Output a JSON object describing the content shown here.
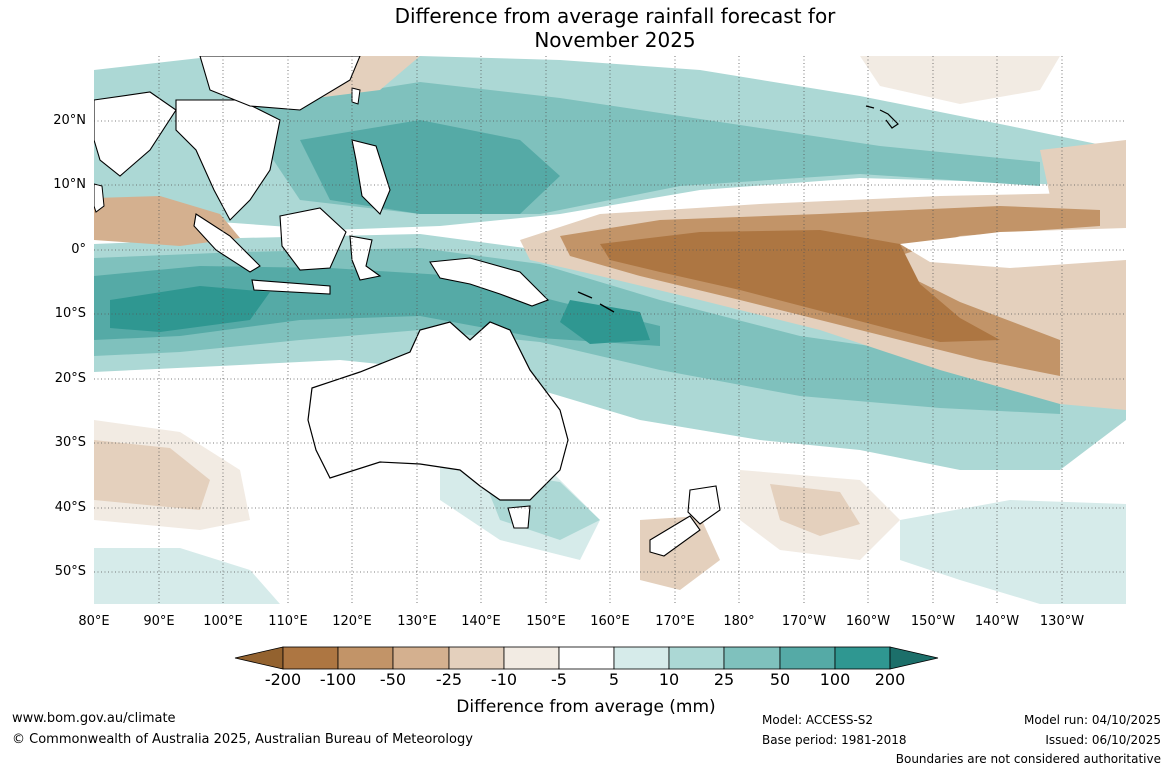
{
  "title": {
    "line1": "Difference from average rainfall forecast for",
    "line2": "November 2025"
  },
  "map": {
    "lat_labels": [
      "20°N",
      "10°N",
      "0°",
      "10°S",
      "20°S",
      "30°S",
      "40°S",
      "50°S"
    ],
    "lon_labels": [
      "80°E",
      "90°E",
      "100°E",
      "110°E",
      "120°E",
      "130°E",
      "140°E",
      "150°E",
      "160°E",
      "170°E",
      "180°",
      "170°W",
      "160°W",
      "150°W",
      "140°W",
      "130°W"
    ]
  },
  "legend": {
    "title": "Difference from average (mm)",
    "ticks": [
      "-200",
      "-100",
      "-50",
      "-25",
      "-10",
      "-5",
      "5",
      "10",
      "25",
      "50",
      "100",
      "200"
    ],
    "colors": {
      "dry_extend": "#93622f",
      "dry_200": "#ad7642",
      "dry_100": "#c29468",
      "dry_50": "#d4b08f",
      "dry_25": "#e4d0bd",
      "dry_10": "#f2ebe3",
      "neutral": "#ffffff",
      "wet_10": "#d6ebea",
      "wet_25": "#acd8d5",
      "wet_50": "#7fc1bd",
      "wet_100": "#55aaa6",
      "wet_200": "#2f9791",
      "wet_extend": "#1c6f6a"
    }
  },
  "footer": {
    "url": "www.bom.gov.au/climate",
    "copyright": "© Commonwealth of Australia 2025, Australian Bureau of Meteorology",
    "model": "Model: ACCESS-S2",
    "base_period": "Base period: 1981-2018",
    "model_run": "Model run: 04/10/2025",
    "issued": "Issued: 06/10/2025",
    "disclaimer": "Boundaries are not considered authoritative"
  }
}
